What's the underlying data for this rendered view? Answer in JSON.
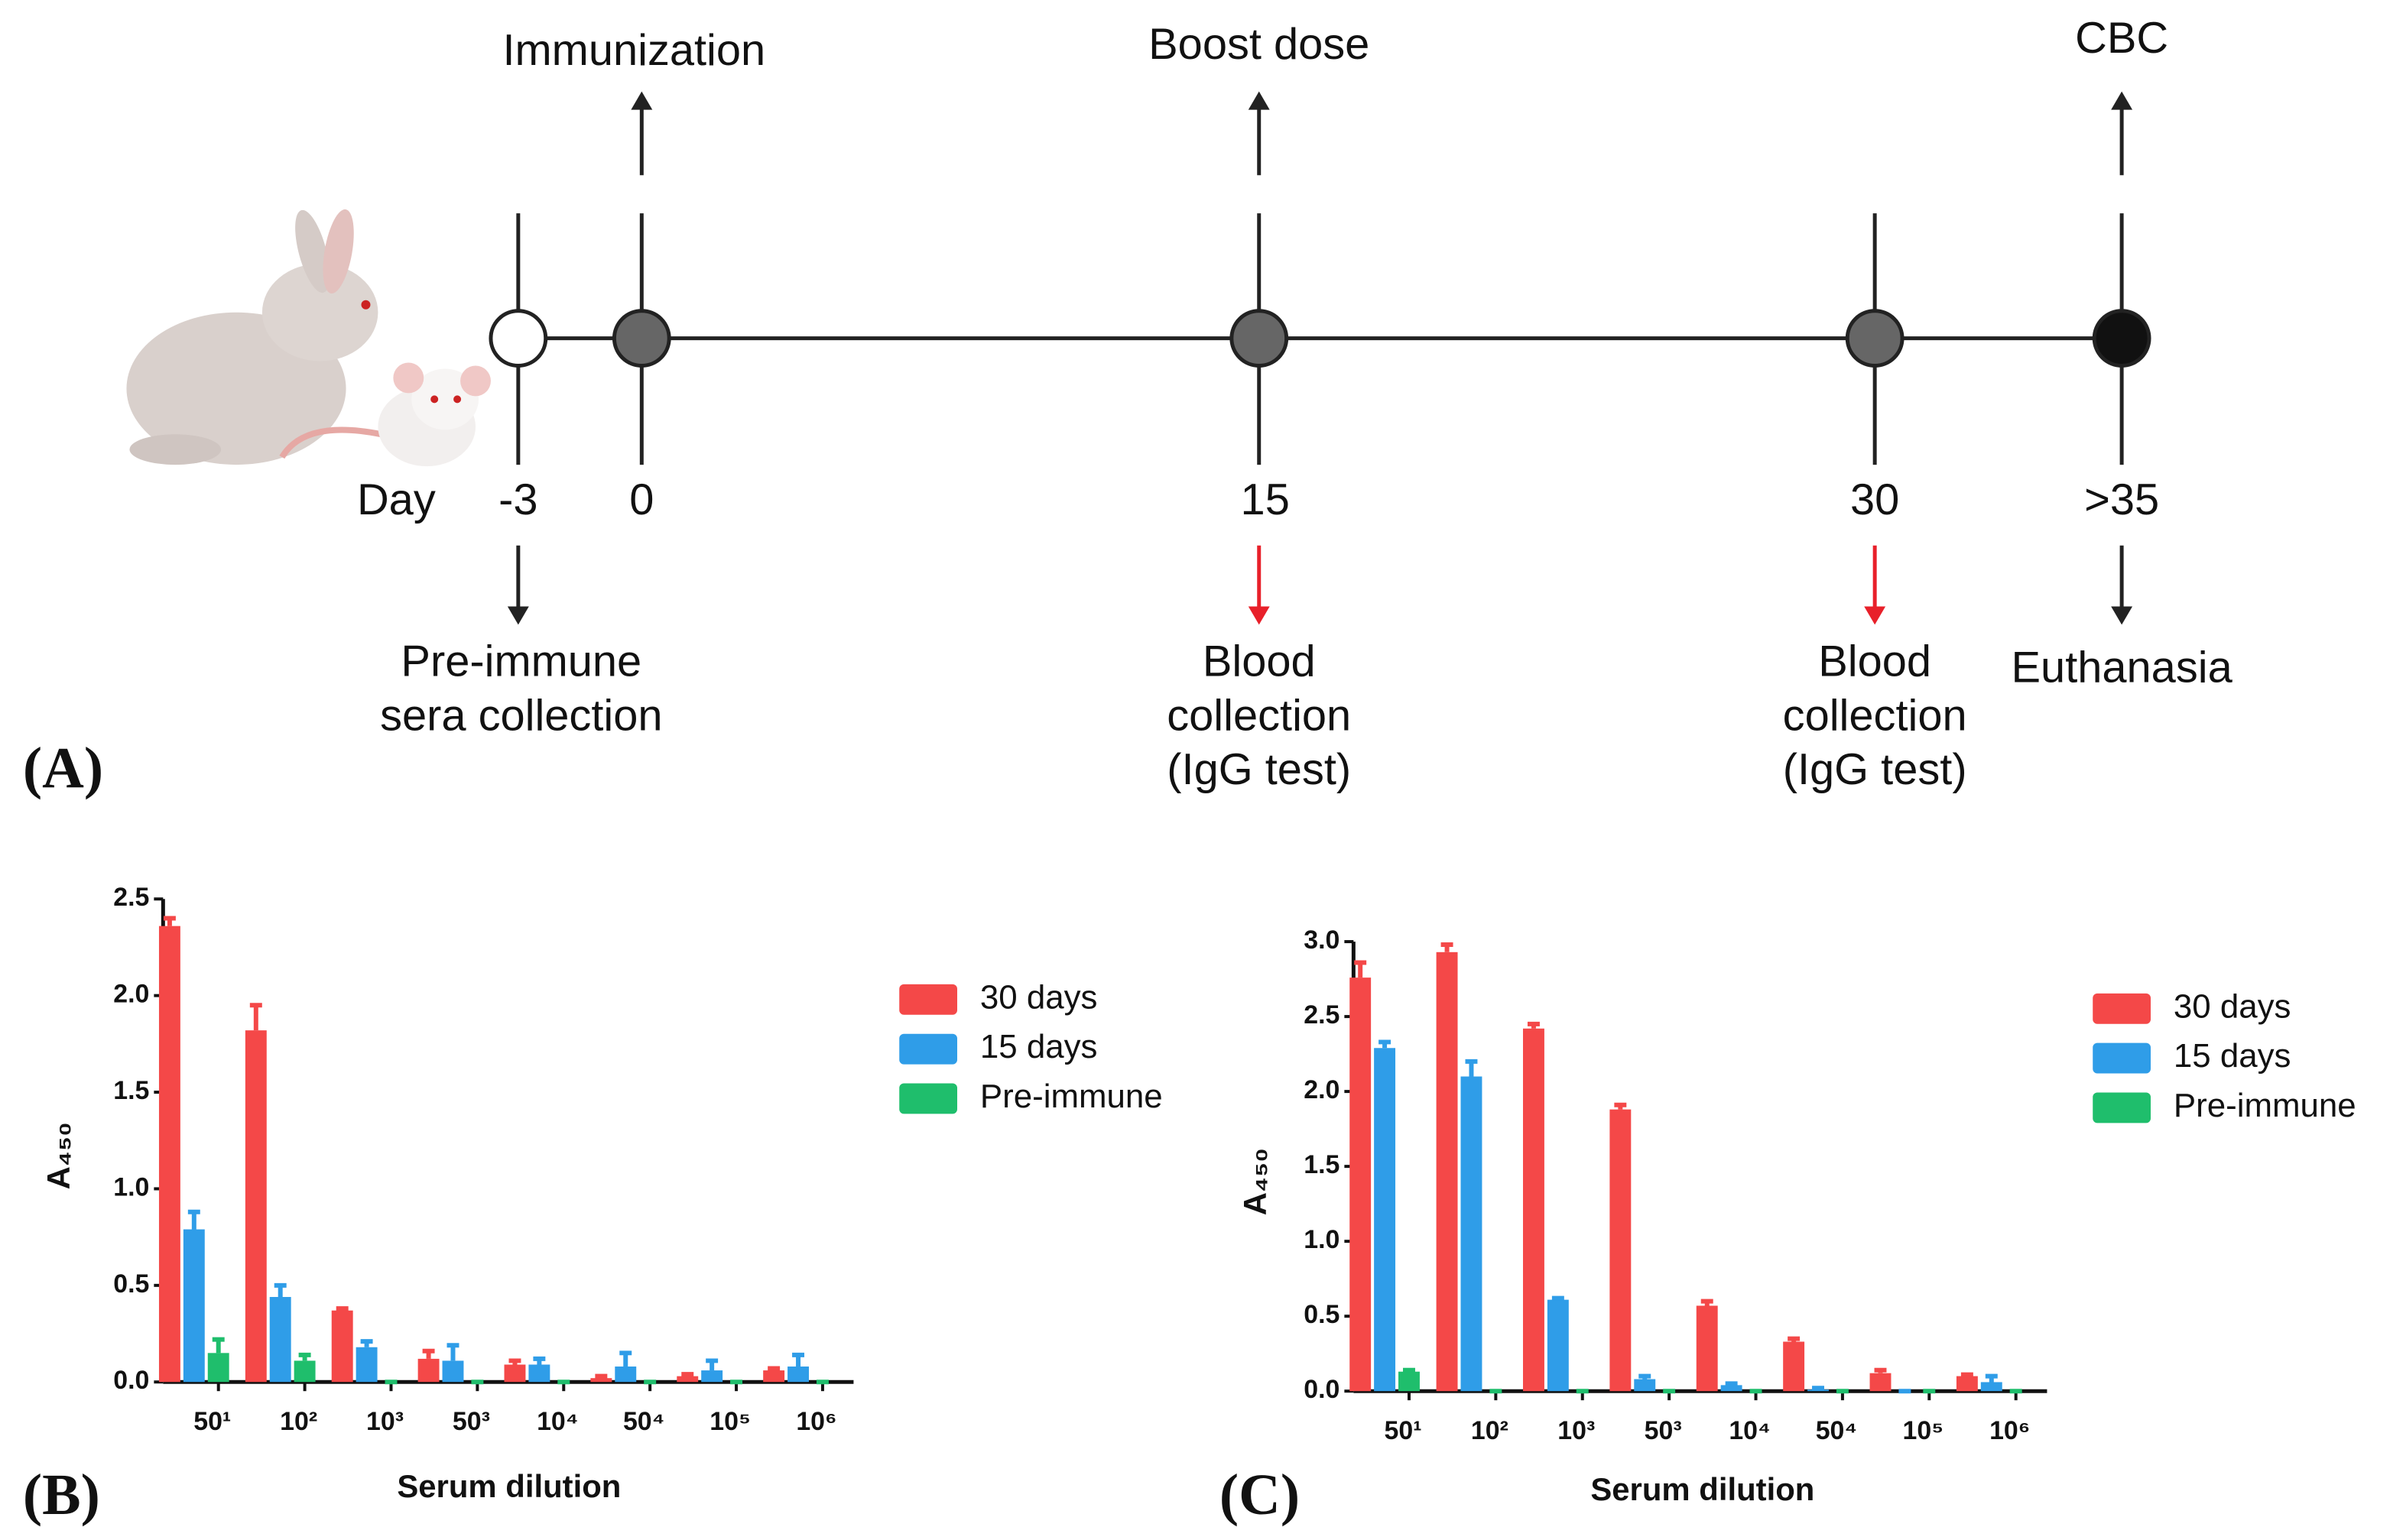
{
  "timeline": {
    "panel": "(A)",
    "day_label": "Day",
    "events": [
      {
        "day": "-3",
        "marker": "#ffffff",
        "below": [
          "Pre-immune",
          "sera collection"
        ],
        "below_arrow": "#222222"
      },
      {
        "day": "0",
        "marker": "#666666",
        "above": "Immunization"
      },
      {
        "day": "15",
        "marker": "#666666",
        "above": "Boost dose",
        "below": [
          "Blood",
          "collection",
          "(IgG test)"
        ],
        "below_arrow": "#e8202a"
      },
      {
        "day": "30",
        "marker": "#666666",
        "below": [
          "Blood",
          "collection",
          "(IgG test)"
        ],
        "below_arrow": "#e8202a"
      },
      {
        "day": ">35",
        "marker": "#111111",
        "above": "CBC",
        "below": [
          "Euthanasia"
        ],
        "below_arrow": "#222222"
      }
    ]
  },
  "chart_data": [
    {
      "type": "bar",
      "panel": "(B)",
      "ylabel": "A₄₅₀",
      "xlabel": "Serum dilution",
      "categories": [
        "50¹",
        "10²",
        "10³",
        "50³",
        "10⁴",
        "50⁴",
        "10⁵",
        "10⁶"
      ],
      "series": [
        {
          "name": "30 days",
          "color": "#f44848",
          "values": [
            2.36,
            1.82,
            0.37,
            0.12,
            0.09,
            0.02,
            0.03,
            0.06
          ],
          "errors": [
            0.04,
            0.13,
            0.01,
            0.04,
            0.02,
            0.01,
            0.01,
            0.01
          ]
        },
        {
          "name": "15 days",
          "color": "#2f9de8",
          "values": [
            0.79,
            0.44,
            0.18,
            0.11,
            0.09,
            0.08,
            0.06,
            0.08
          ],
          "errors": [
            0.09,
            0.06,
            0.03,
            0.08,
            0.03,
            0.07,
            0.05,
            0.06
          ]
        },
        {
          "name": "Pre-immune",
          "color": "#1fbe6c",
          "values": [
            0.15,
            0.11,
            0,
            0,
            0,
            0,
            0,
            0
          ],
          "errors": [
            0.07,
            0.03,
            0,
            0,
            0,
            0,
            0,
            0
          ]
        }
      ],
      "ylim": [
        0,
        2.5
      ],
      "yticks": [
        {
          "value": 0,
          "label": "0.0"
        },
        0.5,
        {
          "value": 1,
          "label": "1.0"
        },
        1.5,
        {
          "value": 2,
          "label": "2.0"
        },
        2.5
      ]
    },
    {
      "type": "bar",
      "panel": "(C)",
      "ylabel": "A₄₅₀",
      "xlabel": "Serum dilution",
      "categories": [
        "50¹",
        "10²",
        "10³",
        "50³",
        "10⁴",
        "50⁴",
        "10⁵",
        "10⁶"
      ],
      "series": [
        {
          "name": "30 days",
          "color": "#f44848",
          "values": [
            2.76,
            2.93,
            2.42,
            1.88,
            0.57,
            0.33,
            0.12,
            0.1
          ],
          "errors": [
            0.1,
            0.05,
            0.03,
            0.03,
            0.03,
            0.02,
            0.02,
            0.01
          ]
        },
        {
          "name": "15 days",
          "color": "#2f9de8",
          "values": [
            2.29,
            2.1,
            0.61,
            0.08,
            0.04,
            0.01,
            0,
            0.06
          ],
          "errors": [
            0.04,
            0.1,
            0.01,
            0.02,
            0.01,
            0.01,
            0,
            0.04
          ]
        },
        {
          "name": "Pre-immune",
          "color": "#1fbe6c",
          "values": [
            0.13,
            0,
            0,
            0,
            0,
            0,
            0,
            0
          ],
          "errors": [
            0.01,
            0,
            0,
            0,
            0,
            0,
            0,
            0
          ]
        }
      ],
      "ylim": [
        0,
        3
      ],
      "yticks": [
        {
          "value": 0,
          "label": "0.0"
        },
        0.5,
        {
          "value": 1,
          "label": "1.0"
        },
        1.5,
        {
          "value": 2,
          "label": "2.0"
        },
        2.5,
        {
          "value": 3,
          "label": "3.0"
        }
      ]
    }
  ]
}
